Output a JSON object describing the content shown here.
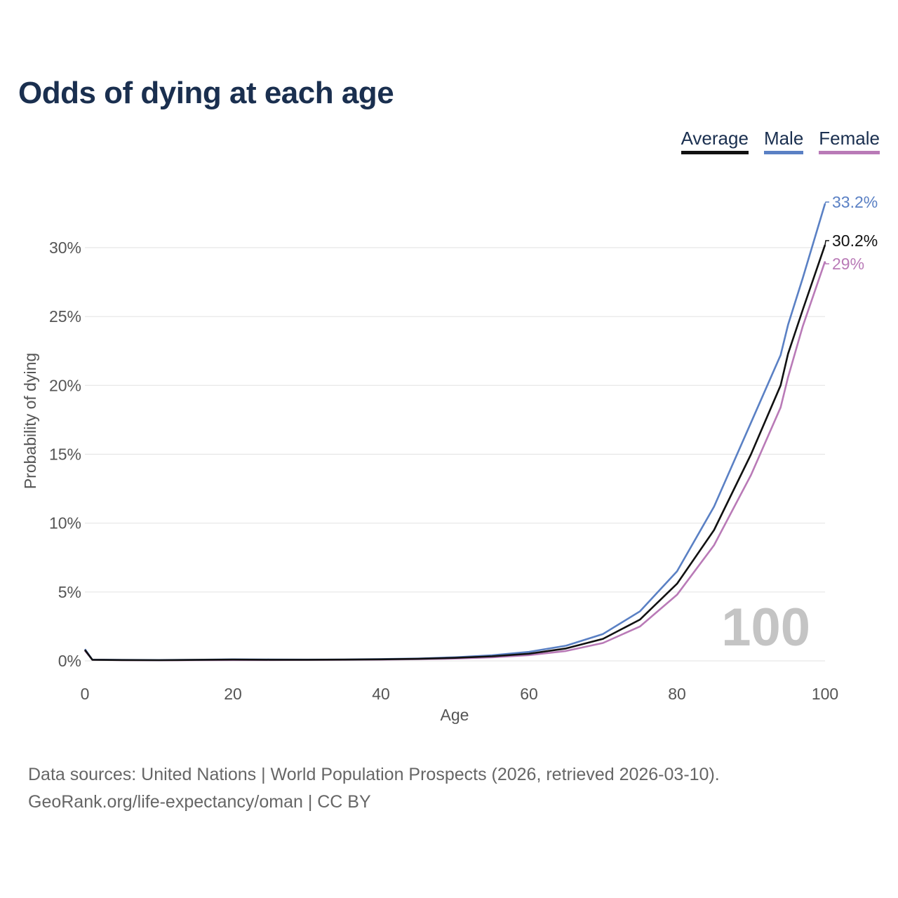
{
  "title": "Odds of dying at each age",
  "legend": [
    {
      "label": "Average",
      "color": "#111111"
    },
    {
      "label": "Male",
      "color": "#5a80c4"
    },
    {
      "label": "Female",
      "color": "#b97ab7"
    }
  ],
  "footer": {
    "sources": "Data sources: United Nations | World Population Prospects (2026, retrieved 2026-03-10).",
    "credit": "GeoRank.org/life-expectancy/oman | CC BY"
  },
  "chart_data": {
    "type": "line",
    "title": "Odds of dying at each age",
    "xlabel": "Age",
    "ylabel": "Probability of dying",
    "xlim": [
      0,
      100
    ],
    "ylim": [
      0,
      33
    ],
    "xticks": [
      "0",
      "20",
      "40",
      "60",
      "80",
      "100"
    ],
    "yticks": [
      "0%",
      "5%",
      "10%",
      "15%",
      "20%",
      "25%",
      "30%"
    ],
    "x": [
      0,
      1,
      5,
      10,
      15,
      20,
      25,
      30,
      35,
      40,
      45,
      50,
      55,
      60,
      65,
      70,
      75,
      80,
      85,
      90,
      94,
      95,
      97,
      100
    ],
    "series": [
      {
        "name": "Average",
        "color": "#111111",
        "end_label": "30.2%",
        "values": [
          0.8,
          0.08,
          0.06,
          0.05,
          0.07,
          0.09,
          0.08,
          0.08,
          0.09,
          0.11,
          0.15,
          0.22,
          0.33,
          0.52,
          0.9,
          1.6,
          3.0,
          5.6,
          9.5,
          15.0,
          20.0,
          22.3,
          25.5,
          30.2
        ]
      },
      {
        "name": "Male",
        "color": "#5a80c4",
        "end_label": "33.2%",
        "values": [
          0.85,
          0.09,
          0.07,
          0.06,
          0.08,
          0.11,
          0.1,
          0.09,
          0.1,
          0.13,
          0.17,
          0.26,
          0.4,
          0.65,
          1.1,
          1.95,
          3.6,
          6.5,
          11.2,
          17.3,
          22.2,
          24.4,
          27.8,
          33.2
        ]
      },
      {
        "name": "Female",
        "color": "#b97ab7",
        "end_label": "29%",
        "values": [
          0.75,
          0.08,
          0.05,
          0.04,
          0.05,
          0.06,
          0.06,
          0.07,
          0.08,
          0.09,
          0.12,
          0.17,
          0.26,
          0.42,
          0.72,
          1.3,
          2.5,
          4.8,
          8.4,
          13.5,
          18.4,
          20.6,
          24.3,
          29.0
        ]
      }
    ],
    "annotation": "100",
    "grid": true,
    "legend_position": "top-right"
  }
}
